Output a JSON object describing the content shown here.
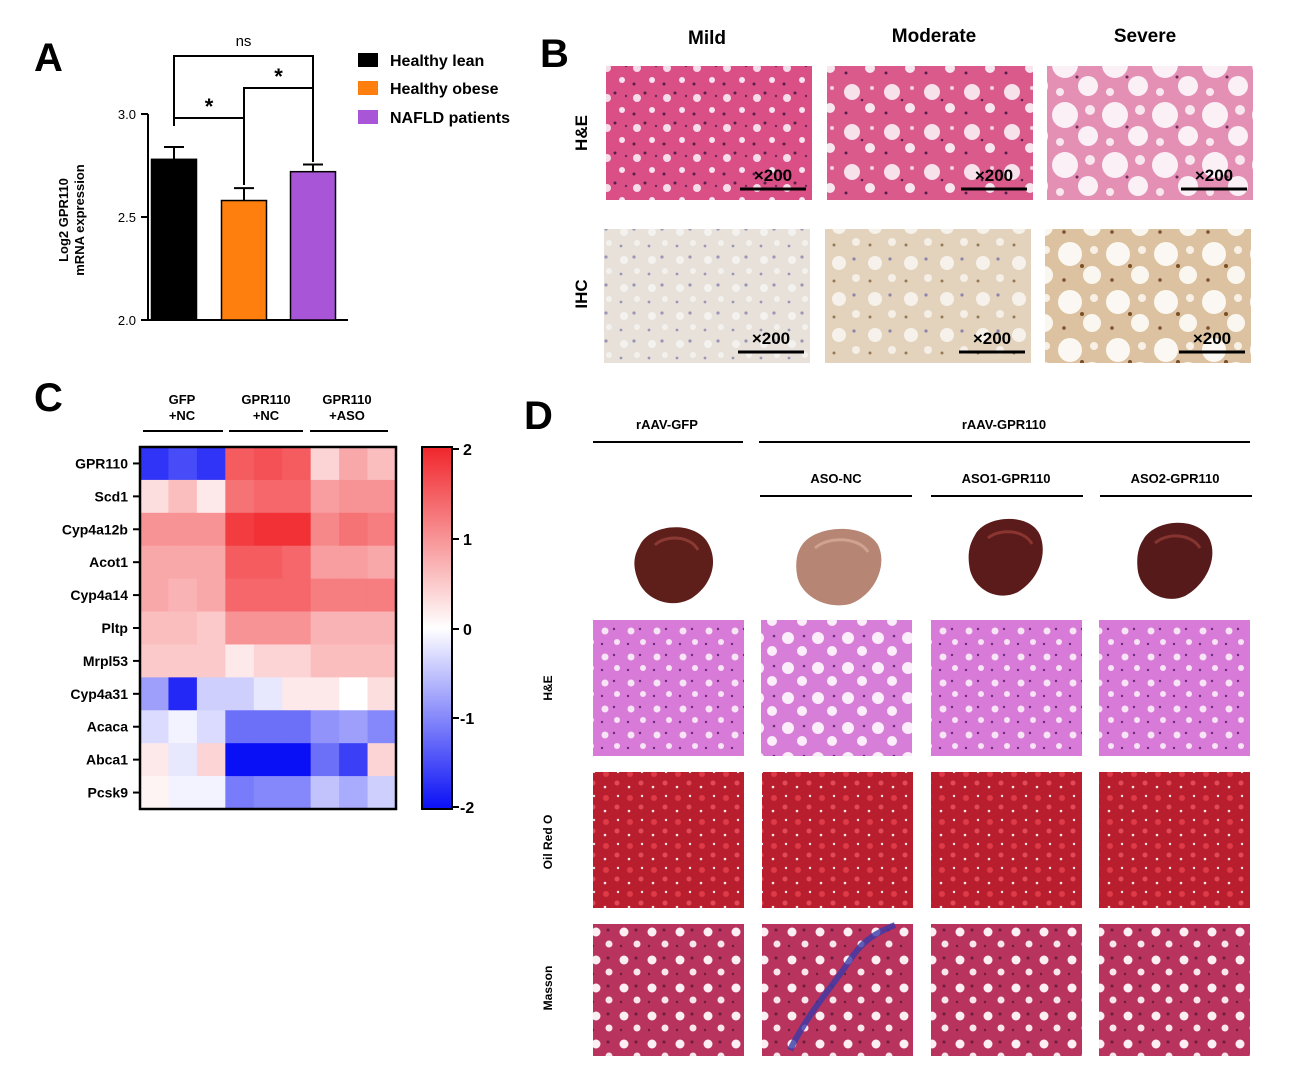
{
  "panels": {
    "A": {
      "letter": "A",
      "chart_data": {
        "type": "bar",
        "categories": [
          "Healthy lean",
          "Healthy obese",
          "NAFLD patients"
        ],
        "values": [
          2.78,
          2.58,
          2.72
        ],
        "errors": [
          0.06,
          0.06,
          0.035
        ],
        "colors": [
          "#000000",
          "#fe7f0e",
          "#a855d8"
        ],
        "ylabel_line1": "Log2 GPR110",
        "ylabel_line2": "mRNA expression",
        "ylim": [
          2.0,
          3.0
        ],
        "yticks": [
          "2.0",
          "2.5",
          "3.0"
        ],
        "legend": [
          "Healthy lean",
          "Healthy obese",
          "NAFLD patients"
        ],
        "significance": [
          {
            "pair": [
              0,
              2
            ],
            "label": "ns"
          },
          {
            "pair": [
              0,
              1
            ],
            "label": "*"
          },
          {
            "pair": [
              1,
              2
            ],
            "label": "*"
          }
        ]
      }
    },
    "B": {
      "letter": "B",
      "columns": [
        "Mild",
        "Moderate",
        "Severe"
      ],
      "rows": [
        "H&E",
        "IHC"
      ],
      "magnification": "×200"
    },
    "C": {
      "letter": "C",
      "chart_data": {
        "type": "heatmap",
        "groups": [
          {
            "line1": "GFP",
            "line2": "+NC"
          },
          {
            "line1": "GPR110",
            "line2": "+NC"
          },
          {
            "line1": "GPR110",
            "line2": "+ASO"
          }
        ],
        "genes": [
          "GPR110",
          "Scd1",
          "Cyp4a12b",
          "Acot1",
          "Cyp4a14",
          "Pltp",
          "Mrpl53",
          "Cyp4a31",
          "Acaca",
          "Abca1",
          "Pcsk9"
        ],
        "values": [
          [
            -1.7,
            -1.5,
            -1.7,
            1.5,
            1.6,
            1.5,
            0.4,
            0.8,
            0.6
          ],
          [
            0.3,
            0.6,
            0.2,
            1.3,
            1.4,
            1.4,
            0.9,
            1.0,
            1.0
          ],
          [
            1.0,
            1.0,
            1.0,
            1.8,
            1.9,
            1.9,
            1.1,
            1.3,
            1.2
          ],
          [
            0.8,
            0.8,
            0.8,
            1.5,
            1.5,
            1.4,
            0.9,
            0.9,
            0.8
          ],
          [
            0.8,
            0.7,
            0.8,
            1.4,
            1.4,
            1.4,
            1.2,
            1.2,
            1.2
          ],
          [
            0.6,
            0.6,
            0.5,
            1.0,
            1.0,
            1.0,
            0.7,
            0.7,
            0.7
          ],
          [
            0.5,
            0.5,
            0.5,
            0.2,
            0.4,
            0.4,
            0.6,
            0.6,
            0.6
          ],
          [
            -0.8,
            -1.8,
            -0.4,
            -0.4,
            -0.2,
            0.2,
            0.2,
            0.0,
            0.3
          ],
          [
            -0.3,
            -0.1,
            -0.3,
            -1.2,
            -1.2,
            -1.2,
            -0.9,
            -0.8,
            -1.0
          ],
          [
            0.2,
            -0.2,
            0.4,
            -2.0,
            -2.0,
            -2.0,
            -1.2,
            -1.6,
            0.4
          ],
          [
            0.1,
            -0.1,
            -0.1,
            -1.1,
            -1.0,
            -1.0,
            -0.5,
            -0.7,
            -0.4
          ]
        ],
        "scale": {
          "min": -2,
          "max": 2,
          "ticks": [
            "2",
            "1",
            "0",
            "-1",
            "-2"
          ]
        }
      }
    },
    "D": {
      "letter": "D",
      "header_left": "rAAV-GFP",
      "header_right": "rAAV-GPR110",
      "subgroups": [
        "ASO-NC",
        "ASO1-GPR110",
        "ASO2-GPR110"
      ],
      "rows": [
        "H&E",
        "Oil Red O",
        "Masson"
      ]
    }
  }
}
